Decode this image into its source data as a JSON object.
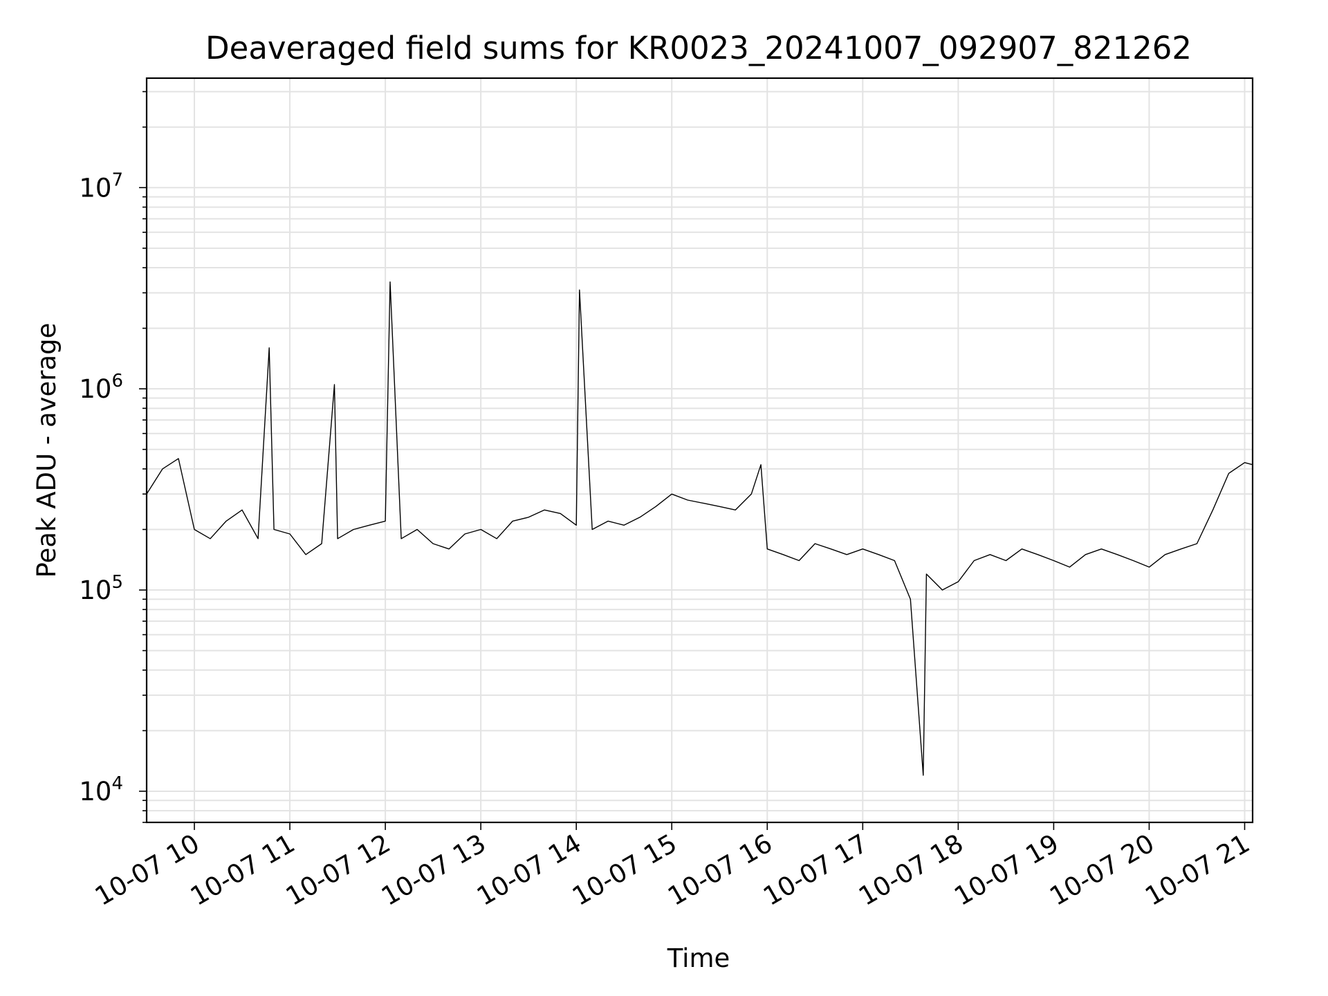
{
  "chart_data": {
    "type": "line",
    "title": "Deaveraged field sums for KR0023_20241007_092907_821262",
    "xlabel": "Time",
    "ylabel": "Peak ADU - average",
    "yscale": "log",
    "xlim": [
      "10-07 09:30",
      "10-07 21:05"
    ],
    "ylim": [
      7000,
      35000000
    ],
    "grid": true,
    "line_color": "#000000",
    "x_tick_labels": [
      "10-07 10",
      "10-07 11",
      "10-07 12",
      "10-07 13",
      "10-07 14",
      "10-07 15",
      "10-07 16",
      "10-07 17",
      "10-07 18",
      "10-07 19",
      "10-07 20",
      "10-07 21"
    ],
    "y_tick_labels": [
      {
        "base": "10",
        "exp": "4",
        "value": 10000
      },
      {
        "base": "10",
        "exp": "5",
        "value": 100000
      },
      {
        "base": "10",
        "exp": "6",
        "value": 1000000
      },
      {
        "base": "10",
        "exp": "7",
        "value": 10000000
      }
    ],
    "series": [
      {
        "x": [
          "10-07 09:30",
          "10-07 09:40",
          "10-07 09:50",
          "10-07 10:00",
          "10-07 10:10",
          "10-07 10:20",
          "10-07 10:30",
          "10-07 10:40",
          "10-07 10:47",
          "10-07 10:50",
          "10-07 11:00",
          "10-07 11:10",
          "10-07 11:20",
          "10-07 11:28",
          "10-07 11:30",
          "10-07 11:40",
          "10-07 11:50",
          "10-07 12:00",
          "10-07 12:03",
          "10-07 12:10",
          "10-07 12:20",
          "10-07 12:30",
          "10-07 12:40",
          "10-07 12:50",
          "10-07 13:00",
          "10-07 13:10",
          "10-07 13:20",
          "10-07 13:30",
          "10-07 13:40",
          "10-07 13:50",
          "10-07 14:00",
          "10-07 14:02",
          "10-07 14:10",
          "10-07 14:20",
          "10-07 14:30",
          "10-07 14:40",
          "10-07 14:50",
          "10-07 15:00",
          "10-07 15:10",
          "10-07 15:20",
          "10-07 15:30",
          "10-07 15:40",
          "10-07 15:50",
          "10-07 15:56",
          "10-07 16:00",
          "10-07 16:10",
          "10-07 16:20",
          "10-07 16:30",
          "10-07 16:40",
          "10-07 16:50",
          "10-07 17:00",
          "10-07 17:10",
          "10-07 17:20",
          "10-07 17:30",
          "10-07 17:38",
          "10-07 17:40",
          "10-07 17:50",
          "10-07 18:00",
          "10-07 18:10",
          "10-07 18:20",
          "10-07 18:30",
          "10-07 18:40",
          "10-07 18:50",
          "10-07 19:00",
          "10-07 19:10",
          "10-07 19:20",
          "10-07 19:30",
          "10-07 19:40",
          "10-07 19:50",
          "10-07 20:00",
          "10-07 20:10",
          "10-07 20:20",
          "10-07 20:30",
          "10-07 20:40",
          "10-07 20:50",
          "10-07 21:00",
          "10-07 21:05"
        ],
        "y": [
          300000,
          400000,
          450000,
          200000,
          180000,
          220000,
          250000,
          180000,
          1600000,
          200000,
          190000,
          150000,
          170000,
          1050000,
          180000,
          200000,
          210000,
          220000,
          3400000,
          180000,
          200000,
          170000,
          160000,
          190000,
          200000,
          180000,
          220000,
          230000,
          250000,
          240000,
          210000,
          3100000,
          200000,
          220000,
          210000,
          230000,
          260000,
          300000,
          280000,
          270000,
          260000,
          250000,
          300000,
          420000,
          160000,
          150000,
          140000,
          170000,
          160000,
          150000,
          160000,
          150000,
          140000,
          90000,
          12000,
          120000,
          100000,
          110000,
          140000,
          150000,
          140000,
          160000,
          150000,
          140000,
          130000,
          150000,
          160000,
          150000,
          140000,
          130000,
          150000,
          160000,
          170000,
          250000,
          380000,
          430000,
          420000
        ]
      }
    ]
  }
}
